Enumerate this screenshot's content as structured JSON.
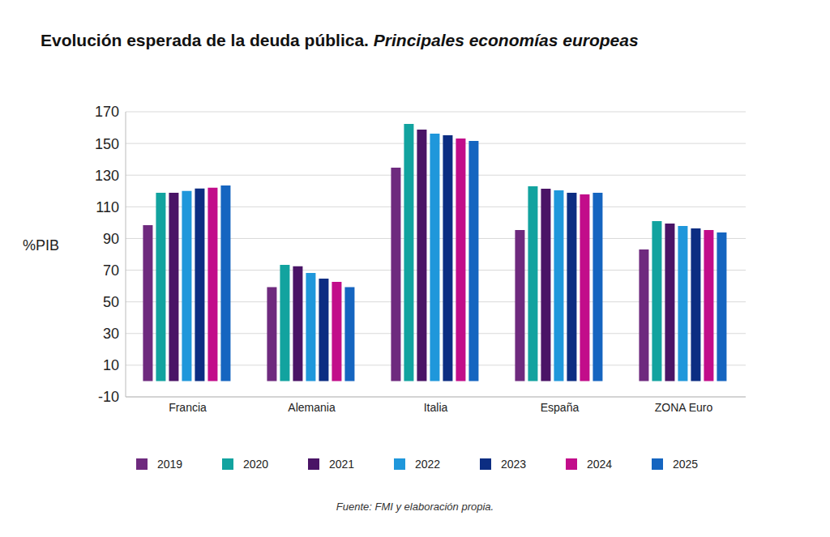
{
  "chart_data": {
    "type": "bar",
    "title": "Evolución esperada de la deuda pública.",
    "subtitle": "Principales economías europeas",
    "y_label": "%PIB",
    "source": "Fuente: FMI y elaboración propia.",
    "categories": [
      "Francia",
      "Alemania",
      "Italia",
      "España",
      "ZONA Euro"
    ],
    "series": [
      {
        "name": "2019",
        "color": "#6e2a7e",
        "values": [
          98.4,
          59.3,
          134.7,
          95.4,
          83.1
        ]
      },
      {
        "name": "2020",
        "color": "#12a39f",
        "values": [
          118.9,
          73.4,
          162.3,
          123.0,
          101.0
        ]
      },
      {
        "name": "2021",
        "color": "#4a1466",
        "values": [
          118.9,
          72.4,
          158.8,
          121.4,
          99.4
        ]
      },
      {
        "name": "2022",
        "color": "#1f97db",
        "values": [
          120.0,
          68.3,
          156.2,
          120.4,
          97.9
        ]
      },
      {
        "name": "2023",
        "color": "#0c2d82",
        "values": [
          121.5,
          64.7,
          155.2,
          118.9,
          96.4
        ]
      },
      {
        "name": "2024",
        "color": "#c20d8a",
        "values": [
          122.0,
          62.6,
          153.1,
          117.9,
          95.4
        ]
      },
      {
        "name": "2025",
        "color": "#1565c0",
        "values": [
          123.5,
          59.3,
          151.6,
          118.9,
          93.8
        ]
      }
    ],
    "ylim": [
      -10,
      170
    ],
    "yticks": [
      -10,
      10,
      30,
      50,
      70,
      90,
      110,
      130,
      150,
      170
    ],
    "grid": true,
    "legend": "bottom"
  }
}
